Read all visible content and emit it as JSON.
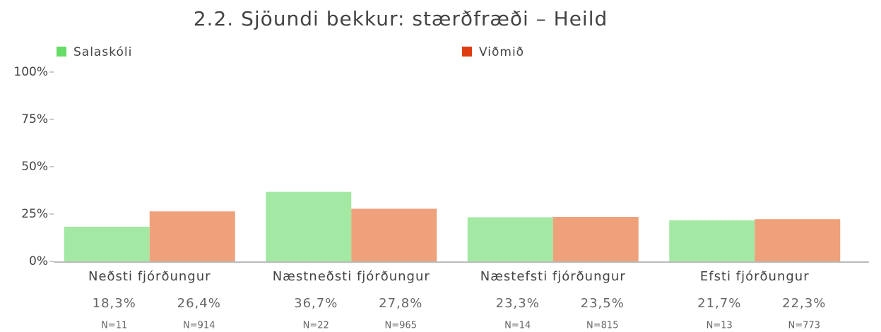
{
  "chart_data": {
    "type": "bar",
    "title": "2.2. Sjöundi bekkur: stærðfræði – Heild",
    "categories": [
      "Neðsti fjórðungur",
      "Næstneðsti fjórðungur",
      "Næstefsti fjórðungur",
      "Efsti fjórðungur"
    ],
    "series": [
      {
        "name": "Salaskóli",
        "color": "#a3e8a3",
        "legend_color": "#66dd66",
        "values": [
          18.3,
          36.7,
          23.3,
          21.7
        ],
        "value_labels": [
          "18,3%",
          "36,7%",
          "23,3%",
          "21,7%"
        ],
        "n_labels": [
          "N=11",
          "N=22",
          "N=14",
          "N=13"
        ]
      },
      {
        "name": "Viðmið",
        "color": "#efa17b",
        "legend_color": "#e03c14",
        "values": [
          26.4,
          27.8,
          23.5,
          22.3
        ],
        "value_labels": [
          "26,4%",
          "27,8%",
          "23,5%",
          "22,3%"
        ],
        "n_labels": [
          "N=914",
          "N=965",
          "N=815",
          "N=773"
        ]
      }
    ],
    "ylim": [
      0,
      100
    ],
    "yticks": [
      {
        "value": 0,
        "label": "0%"
      },
      {
        "value": 25,
        "label": "25%"
      },
      {
        "value": 50,
        "label": "50%"
      },
      {
        "value": 75,
        "label": "75%"
      },
      {
        "value": 100,
        "label": "100%"
      }
    ],
    "grid": false
  }
}
